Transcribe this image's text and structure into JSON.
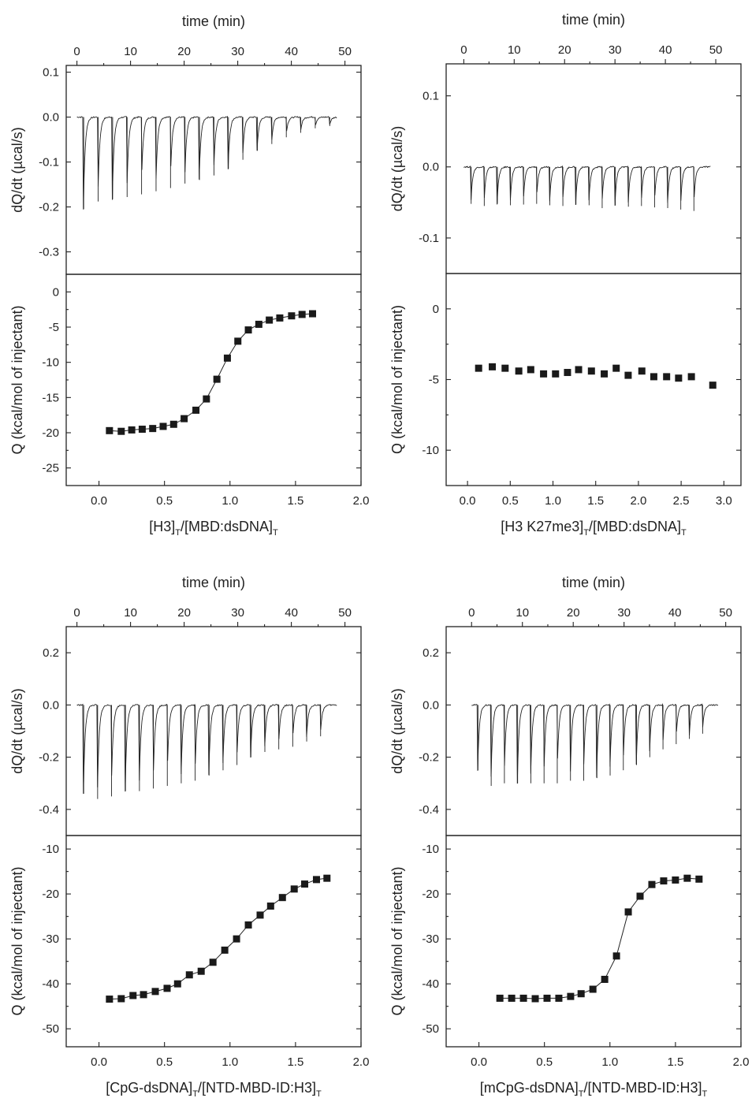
{
  "chart_data": [
    {
      "id": "a",
      "type": "scatter",
      "top_axis": {
        "label": "time (min)",
        "range": [
          -2,
          53
        ],
        "ticks": [
          0,
          10,
          20,
          30,
          40,
          50
        ],
        "tick_labels": [
          "0",
          "10",
          "20",
          "30",
          "40",
          "50"
        ]
      },
      "thermogram": {
        "ylabel": "dQ/dt (µcal/s)",
        "ylim": [
          -0.35,
          0.115
        ],
        "yticks": [
          0.1,
          0.0,
          -0.1,
          -0.2,
          -0.3
        ],
        "ytick_labels": [
          "0.1",
          "0.0",
          "-0.1",
          "-0.2",
          "-0.3"
        ],
        "start_time": 0.0,
        "end_time": 48.5,
        "injection_times": [
          1.2,
          3.9,
          6.6,
          9.3,
          12.0,
          14.7,
          17.4,
          20.1,
          22.8,
          25.5,
          28.2,
          30.9,
          33.6,
          36.3,
          39.0,
          41.7,
          44.4,
          47.1
        ],
        "peak_values": [
          -0.205,
          -0.188,
          -0.183,
          -0.178,
          -0.172,
          -0.165,
          -0.158,
          -0.148,
          -0.14,
          -0.13,
          -0.115,
          -0.095,
          -0.075,
          -0.06,
          -0.045,
          -0.035,
          -0.025,
          -0.02
        ]
      },
      "isotherm": {
        "ylabel": "Q (kcal/mol of injectant)",
        "ylim": [
          -27.5,
          2.5
        ],
        "yticks": [
          0,
          -5,
          -10,
          -15,
          -20,
          -25
        ],
        "ytick_labels": [
          "0",
          "-5",
          "-10",
          "-15",
          "-20",
          "-25"
        ],
        "xlim": [
          -0.25,
          2.0
        ],
        "xticks": [
          0.0,
          0.5,
          1.0,
          1.5,
          2.0
        ],
        "xtick_labels": [
          "0.0",
          "0.5",
          "1.0",
          "1.5",
          "2.0"
        ],
        "xlabel_parts": [
          [
            "[H3]",
            "n"
          ],
          [
            "T",
            "sub"
          ],
          [
            "/[MBD:dsDNA]",
            "n"
          ],
          [
            "T",
            "sub"
          ]
        ],
        "x": [
          0.08,
          0.17,
          0.25,
          0.33,
          0.41,
          0.49,
          0.57,
          0.65,
          0.74,
          0.82,
          0.9,
          0.98,
          1.06,
          1.14,
          1.22,
          1.3,
          1.38,
          1.47,
          1.55,
          1.63
        ],
        "y": [
          -19.7,
          -19.8,
          -19.6,
          -19.5,
          -19.4,
          -19.1,
          -18.8,
          -18.0,
          -16.8,
          -15.2,
          -12.4,
          -9.4,
          -7.0,
          -5.4,
          -4.6,
          -4.0,
          -3.7,
          -3.4,
          -3.2,
          -3.1
        ],
        "fit": true
      }
    },
    {
      "id": "b",
      "type": "scatter",
      "top_axis": {
        "label": "time (min)",
        "range": [
          -3.5,
          55
        ],
        "ticks": [
          0,
          10,
          20,
          30,
          40,
          50
        ],
        "tick_labels": [
          "0",
          "10",
          "20",
          "30",
          "40",
          "50"
        ]
      },
      "thermogram": {
        "ylabel": "dQ/dt (µcal/s)",
        "ylim": [
          -0.15,
          0.145
        ],
        "yticks": [
          0.1,
          0.0,
          -0.1
        ],
        "ytick_labels": [
          "0.1",
          "0.0",
          "-0.1"
        ],
        "start_time": 0.0,
        "end_time": 49.0,
        "injection_times": [
          1.4,
          4.0,
          6.6,
          9.2,
          11.8,
          14.4,
          17.0,
          19.6,
          22.2,
          24.8,
          27.4,
          30.0,
          32.6,
          35.2,
          37.8,
          40.4,
          43.0,
          45.6
        ],
        "peak_values": [
          -0.052,
          -0.055,
          -0.052,
          -0.054,
          -0.053,
          -0.052,
          -0.054,
          -0.055,
          -0.053,
          -0.054,
          -0.058,
          -0.054,
          -0.056,
          -0.055,
          -0.057,
          -0.058,
          -0.06,
          -0.062
        ]
      },
      "isotherm": {
        "ylabel": "Q (kcal/mol of injectant)",
        "ylim": [
          -12.5,
          2.5
        ],
        "yticks": [
          0,
          -5,
          -10
        ],
        "ytick_labels": [
          "0",
          "-5",
          "-10"
        ],
        "xlim": [
          -0.25,
          3.2
        ],
        "xticks": [
          0.0,
          0.5,
          1.0,
          1.5,
          2.0,
          2.5,
          3.0
        ],
        "xtick_labels": [
          "0.0",
          "0.5",
          "1.0",
          "1.5",
          "2.0",
          "2.5",
          "3.0"
        ],
        "xlabel_parts": [
          [
            "[H3 K27me3]",
            "n"
          ],
          [
            "T",
            "sub"
          ],
          [
            "/[MBD:dsDNA]",
            "n"
          ],
          [
            "T",
            "sub"
          ]
        ],
        "x": [
          0.13,
          0.29,
          0.44,
          0.6,
          0.74,
          0.89,
          1.03,
          1.17,
          1.3,
          1.45,
          1.6,
          1.74,
          1.88,
          2.04,
          2.18,
          2.33,
          2.47,
          2.62,
          2.87
        ],
        "y": [
          -4.2,
          -4.1,
          -4.2,
          -4.4,
          -4.3,
          -4.6,
          -4.6,
          -4.5,
          -4.3,
          -4.4,
          -4.6,
          -4.2,
          -4.7,
          -4.4,
          -4.8,
          -4.8,
          -4.9,
          -4.8,
          -5.4
        ],
        "fit": false
      }
    },
    {
      "id": "c",
      "type": "scatter",
      "top_axis": {
        "label": "time (min)",
        "range": [
          -2,
          53
        ],
        "ticks": [
          0,
          10,
          20,
          30,
          40,
          50
        ],
        "tick_labels": [
          "0",
          "10",
          "20",
          "30",
          "40",
          "50"
        ]
      },
      "thermogram": {
        "ylabel": "dQ/dt (µcal/s)",
        "ylim": [
          -0.5,
          0.3
        ],
        "yticks": [
          0.2,
          0.0,
          -0.2,
          -0.4
        ],
        "ytick_labels": [
          "0.2",
          "0.0",
          "-0.2",
          "-0.4"
        ],
        "start_time": 0.0,
        "end_time": 48.5,
        "injection_times": [
          1.2,
          3.8,
          6.4,
          9.0,
          11.6,
          14.2,
          16.8,
          19.4,
          22.0,
          24.6,
          27.2,
          29.8,
          32.4,
          35.0,
          37.6,
          40.2,
          42.8,
          45.4
        ],
        "peak_values": [
          -0.34,
          -0.36,
          -0.35,
          -0.33,
          -0.33,
          -0.32,
          -0.31,
          -0.3,
          -0.29,
          -0.27,
          -0.25,
          -0.23,
          -0.2,
          -0.18,
          -0.17,
          -0.16,
          -0.14,
          -0.12
        ]
      },
      "isotherm": {
        "ylabel": "Q (kcal/mol of injectant)",
        "ylim": [
          -54,
          -7
        ],
        "yticks": [
          -10,
          -20,
          -30,
          -40,
          -50
        ],
        "ytick_labels": [
          "-10",
          "-20",
          "-30",
          "-40",
          "-50"
        ],
        "xlim": [
          -0.25,
          2.0
        ],
        "xticks": [
          0.0,
          0.5,
          1.0,
          1.5,
          2.0
        ],
        "xtick_labels": [
          "0.0",
          "0.5",
          "1.0",
          "1.5",
          "2.0"
        ],
        "xlabel_parts": [
          [
            "[CpG-dsDNA]",
            "n"
          ],
          [
            "T",
            "sub"
          ],
          [
            "/[NTD-MBD-ID:H3]",
            "n"
          ],
          [
            "T",
            "sub"
          ]
        ],
        "x": [
          0.08,
          0.17,
          0.26,
          0.34,
          0.43,
          0.52,
          0.6,
          0.69,
          0.78,
          0.87,
          0.96,
          1.05,
          1.14,
          1.23,
          1.31,
          1.4,
          1.49,
          1.57,
          1.66,
          1.74
        ],
        "y": [
          -43.4,
          -43.3,
          -42.6,
          -42.4,
          -41.7,
          -41.0,
          -40.0,
          -38.0,
          -37.2,
          -35.2,
          -32.5,
          -30.0,
          -26.9,
          -24.7,
          -22.7,
          -20.8,
          -18.9,
          -17.8,
          -16.8,
          -16.5
        ],
        "fit": true
      }
    },
    {
      "id": "d",
      "type": "scatter",
      "top_axis": {
        "label": "time (min)",
        "range": [
          -5,
          53
        ],
        "ticks": [
          0,
          10,
          20,
          30,
          40,
          50
        ],
        "tick_labels": [
          "0",
          "10",
          "20",
          "30",
          "40",
          "50"
        ]
      },
      "thermogram": {
        "ylabel": "dQ/dt (µcal/s)",
        "ylim": [
          -0.5,
          0.3
        ],
        "yticks": [
          0.2,
          0.0,
          -0.2,
          -0.4
        ],
        "ytick_labels": [
          "0.2",
          "0.0",
          "-0.2",
          "-0.4"
        ],
        "start_time": 0.0,
        "end_time": 48.5,
        "injection_times": [
          1.2,
          3.8,
          6.4,
          9.0,
          11.6,
          14.2,
          16.8,
          19.4,
          22.0,
          24.6,
          27.2,
          29.8,
          32.4,
          35.0,
          37.6,
          40.2,
          42.8,
          45.4
        ],
        "peak_values": [
          -0.25,
          -0.31,
          -0.3,
          -0.3,
          -0.3,
          -0.3,
          -0.3,
          -0.29,
          -0.29,
          -0.28,
          -0.27,
          -0.25,
          -0.23,
          -0.2,
          -0.17,
          -0.15,
          -0.13,
          -0.11
        ]
      },
      "isotherm": {
        "ylabel": "Q (kcal/mol of injectant)",
        "ylim": [
          -54,
          -7
        ],
        "yticks": [
          -10,
          -20,
          -30,
          -40,
          -50
        ],
        "ytick_labels": [
          "-10",
          "-20",
          "-30",
          "-40",
          "-50"
        ],
        "xlim": [
          -0.25,
          2.0
        ],
        "xticks": [
          0.0,
          0.5,
          1.0,
          1.5,
          2.0
        ],
        "xtick_labels": [
          "0.0",
          "0.5",
          "1.0",
          "1.5",
          "2.0"
        ],
        "xlabel_parts": [
          [
            "[mCpG-dsDNA]",
            "n"
          ],
          [
            "T",
            "sub"
          ],
          [
            "/[NTD-MBD-ID:H3]",
            "n"
          ],
          [
            "T",
            "sub"
          ]
        ],
        "x": [
          0.16,
          0.25,
          0.34,
          0.43,
          0.52,
          0.61,
          0.7,
          0.78,
          0.87,
          0.96,
          1.05,
          1.14,
          1.23,
          1.32,
          1.41,
          1.5,
          1.59,
          1.68
        ],
        "y": [
          -43.2,
          -43.2,
          -43.2,
          -43.3,
          -43.2,
          -43.2,
          -42.8,
          -42.2,
          -41.2,
          -39.0,
          -33.8,
          -24.0,
          -20.5,
          -17.9,
          -17.1,
          -16.9,
          -16.5,
          -16.7
        ],
        "fit": true
      }
    }
  ]
}
